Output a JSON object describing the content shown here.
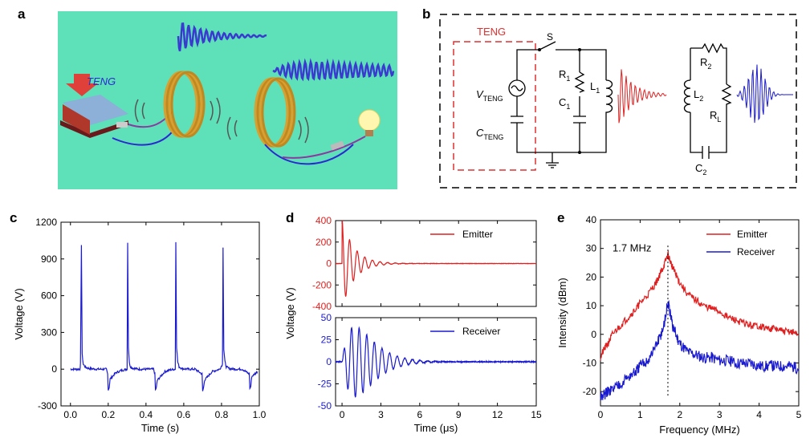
{
  "panels": {
    "a": {
      "letter": "a",
      "teng_label": "TENG"
    },
    "b": {
      "letter": "b",
      "teng_box_label": "TENG",
      "switch_label": "S",
      "labels": {
        "v_teng": "V",
        "v_teng_sub": "TENG",
        "c_teng": "C",
        "c_teng_sub": "TENG",
        "r1": "R",
        "r1_sub": "1",
        "c1": "C",
        "c1_sub": "1",
        "l1": "L",
        "l1_sub": "1",
        "r2": "R",
        "r2_sub": "2",
        "l2": "L",
        "l2_sub": "2",
        "rl": "R",
        "rl_sub": "L",
        "c2": "C",
        "c2_sub": "2"
      }
    },
    "c": {
      "letter": "c"
    },
    "d": {
      "letter": "d"
    },
    "e": {
      "letter": "e"
    }
  },
  "colors": {
    "red": "#e02020",
    "blue": "#1a1ad0",
    "scene_bg": "#5ee0b8",
    "coil": "#d8a030",
    "dash_red": "#e03030"
  },
  "chart_data": [
    {
      "id": "c",
      "type": "line",
      "xlabel": "Time (s)",
      "ylabel": "Voltage (V)",
      "xlim": [
        -0.05,
        1.0
      ],
      "ylim": [
        -300,
        1200
      ],
      "xticks": [
        0.0,
        0.2,
        0.4,
        0.6,
        0.8,
        1.0
      ],
      "xtick_labels": [
        "0.0",
        "0.2",
        "0.4",
        "0.6",
        "0.8",
        "1.0"
      ],
      "yticks": [
        -300,
        0,
        300,
        600,
        900,
        1200
      ],
      "ytick_labels": [
        "-300",
        "0",
        "300",
        "600",
        "900",
        "1200"
      ],
      "series": [
        {
          "color": "#1a1ad0",
          "x": [
            0.0,
            0.05,
            0.053,
            0.058,
            0.062,
            0.068,
            0.08,
            0.1,
            0.14,
            0.19,
            0.197,
            0.2,
            0.205,
            0.21,
            0.24,
            0.27,
            0.3,
            0.303,
            0.307,
            0.312,
            0.318,
            0.33,
            0.36,
            0.4,
            0.44,
            0.447,
            0.45,
            0.455,
            0.46,
            0.5,
            0.53,
            0.555,
            0.558,
            0.562,
            0.568,
            0.575,
            0.59,
            0.62,
            0.66,
            0.697,
            0.7,
            0.705,
            0.71,
            0.75,
            0.79,
            0.805,
            0.808,
            0.812,
            0.818,
            0.825,
            0.84,
            0.87,
            0.91,
            0.947,
            0.95,
            0.955,
            0.96,
            0.99
          ],
          "y": [
            0,
            0,
            40,
            1020,
            120,
            40,
            15,
            5,
            0,
            0,
            -40,
            -170,
            -150,
            -80,
            -30,
            -10,
            0,
            1040,
            180,
            50,
            20,
            8,
            0,
            0,
            0,
            -40,
            -170,
            -150,
            -90,
            -20,
            -5,
            0,
            1040,
            180,
            60,
            20,
            5,
            0,
            0,
            -40,
            -180,
            -150,
            -90,
            -20,
            0,
            40,
            1000,
            160,
            60,
            20,
            5,
            0,
            0,
            -40,
            -160,
            -140,
            -60,
            -20
          ]
        }
      ]
    },
    {
      "id": "d",
      "type": "line",
      "xlabel": "Time (μs)",
      "ylabel": "Voltage (V)",
      "xlim": [
        -0.5,
        15
      ],
      "xticks": [
        0,
        3,
        6,
        9,
        12,
        15
      ],
      "xtick_labels": [
        "0",
        "3",
        "6",
        "9",
        "12",
        "15"
      ],
      "subplots": [
        {
          "ylim": [
            -400,
            400
          ],
          "yticks": [
            -400,
            -200,
            0,
            200,
            400
          ],
          "ytick_labels": [
            "-400",
            "-200",
            "0",
            "200",
            "400"
          ],
          "legend": "Emitter",
          "legend_position": "top-right",
          "series": [
            {
              "name": "Emitter",
              "color": "#e02020",
              "amplitude": 420,
              "frequency": 1.7,
              "decay": 1.1,
              "noise": 3
            }
          ]
        },
        {
          "ylim": [
            -50,
            50
          ],
          "yticks": [
            -50,
            -25,
            0,
            25,
            50
          ],
          "ytick_labels": [
            "-50",
            "-25",
            "0",
            "25",
            "50"
          ],
          "legend": "Receiver",
          "legend_position": "top-right",
          "series": [
            {
              "name": "Receiver",
              "color": "#1a1ad0",
              "amplitude": 40,
              "frequency": 1.7,
              "decay": 0.55,
              "peak_time": 1.0,
              "noise": 1
            }
          ]
        }
      ]
    },
    {
      "id": "e",
      "type": "line",
      "xlabel": "Frequency (MHz)",
      "ylabel": "Intensity (dBm)",
      "xlim": [
        0,
        5
      ],
      "ylim": [
        -25,
        40
      ],
      "xticks": [
        0,
        1,
        2,
        3,
        4,
        5
      ],
      "xtick_labels": [
        "0",
        "1",
        "2",
        "3",
        "4",
        "5"
      ],
      "yticks": [
        -20,
        -10,
        0,
        10,
        20,
        30,
        40
      ],
      "ytick_labels": [
        "-20",
        "-10",
        "0",
        "10",
        "20",
        "30",
        "40"
      ],
      "annotation": "1.7 MHz",
      "marker_x": 1.7,
      "legend_position": "top-right",
      "series": [
        {
          "name": "Emitter",
          "color": "#e02020",
          "x": [
            0,
            0.1,
            0.2,
            0.3,
            0.5,
            0.7,
            0.9,
            1.0,
            1.2,
            1.4,
            1.5,
            1.6,
            1.7,
            1.8,
            1.9,
            2.0,
            2.2,
            2.4,
            2.6,
            2.8,
            3.0,
            3.2,
            3.4,
            3.6,
            3.8,
            4.0,
            4.2,
            4.4,
            4.6,
            4.8,
            5.0
          ],
          "y": [
            -8,
            -5,
            -3,
            0,
            3,
            6,
            9,
            11,
            14,
            18,
            21,
            24,
            28,
            24,
            21,
            18,
            14,
            12,
            10,
            9,
            8,
            6,
            5,
            4,
            3,
            3,
            2,
            2,
            1,
            1,
            0
          ]
        },
        {
          "name": "Receiver",
          "color": "#1a1ad0",
          "x": [
            0,
            0.1,
            0.2,
            0.3,
            0.5,
            0.7,
            0.9,
            1.0,
            1.2,
            1.4,
            1.5,
            1.6,
            1.7,
            1.8,
            1.9,
            2.0,
            2.2,
            2.4,
            2.6,
            2.8,
            3.0,
            3.2,
            3.4,
            3.6,
            3.8,
            4.0,
            4.2,
            4.4,
            4.6,
            4.8,
            5.0
          ],
          "y": [
            -22,
            -21,
            -20,
            -19,
            -17,
            -15,
            -13,
            -11,
            -9,
            -4,
            -1,
            3,
            11,
            4,
            0,
            -3,
            -6,
            -7,
            -8,
            -8,
            -9,
            -9,
            -10,
            -10,
            -10,
            -11,
            -11,
            -11,
            -11,
            -11,
            -12
          ]
        }
      ]
    }
  ]
}
